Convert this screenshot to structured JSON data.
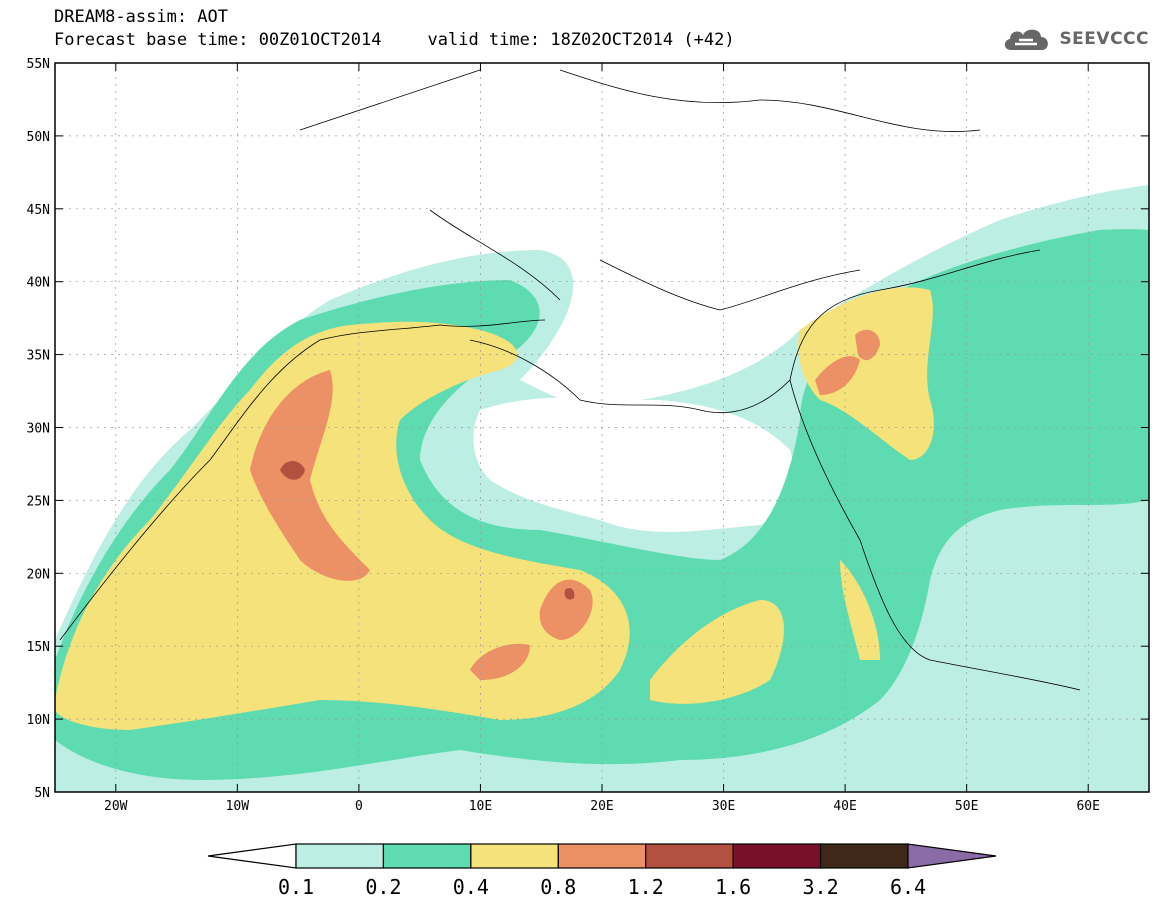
{
  "header": {
    "title": "DREAM8-assim: AOT",
    "base_time": "Forecast base time: 00Z01OCT2014",
    "valid_time": "valid time: 18Z02OCT2014 (+42)"
  },
  "logo": {
    "text": "SEEVCCC",
    "icon": "cloud-icon"
  },
  "map": {
    "lon_range": [
      -25,
      65
    ],
    "lat_range": [
      5,
      55
    ],
    "lon_ticks": [
      -20,
      -10,
      0,
      10,
      20,
      30,
      40,
      50,
      60
    ],
    "lon_tick_labels": [
      "20W",
      "10W",
      "0",
      "10E",
      "20E",
      "30E",
      "40E",
      "50E",
      "60E"
    ],
    "lat_ticks": [
      5,
      10,
      15,
      20,
      25,
      30,
      35,
      40,
      45,
      50,
      55
    ],
    "lat_tick_labels": [
      "5N",
      "10N",
      "15N",
      "20N",
      "25N",
      "30N",
      "35N",
      "40N",
      "45N",
      "50N",
      "55N"
    ],
    "grid": true
  },
  "colorbar": {
    "levels": [
      "0.1",
      "0.2",
      "0.4",
      "0.8",
      "1.2",
      "1.6",
      "3.2",
      "6.4"
    ],
    "colors": [
      "#ffffff",
      "#bdeee4",
      "#5edbb0",
      "#f5e27a",
      "#ec9166",
      "#b3503f",
      "#7a0f2a",
      "#3f2818",
      "#8b6aa8"
    ],
    "extend": "both"
  }
}
